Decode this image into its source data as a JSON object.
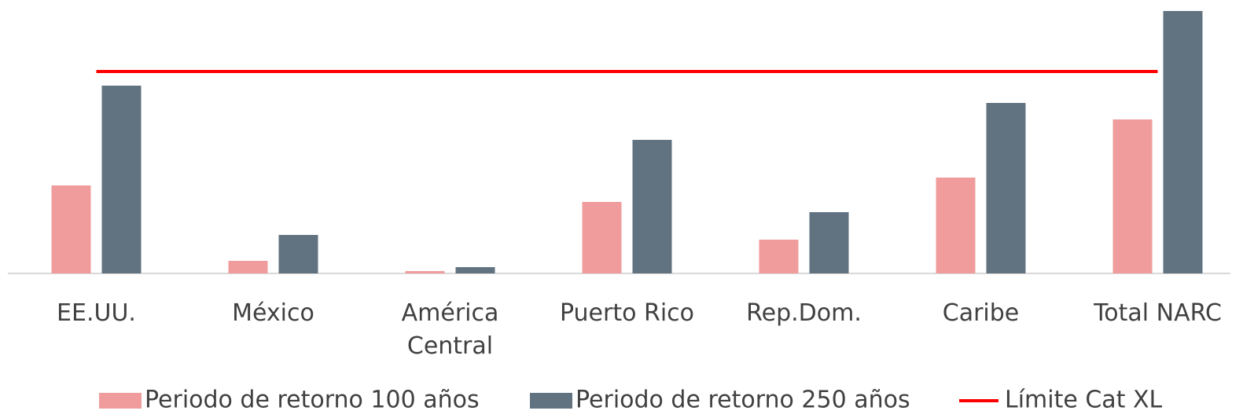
{
  "chart_data": {
    "type": "bar",
    "categories": [
      "EE.UU.",
      "México",
      "América Central",
      "Puerto Rico",
      "Rep.Dom.",
      "Caribe",
      "Total NARC"
    ],
    "series": [
      {
        "name": "Periodo de retorno 100 años",
        "color": "#f09c9c",
        "values": [
          112,
          16,
          3,
          91,
          43,
          122,
          196
        ]
      },
      {
        "name": "Periodo de retorno 250 años",
        "color": "#617381",
        "values": [
          239,
          49,
          8,
          170,
          78,
          217,
          334
        ]
      },
      {
        "name": "Límite Cat XL",
        "color": "#ff0000",
        "type": "line",
        "values": [
          257,
          257,
          257,
          257,
          257,
          257,
          257
        ]
      }
    ],
    "ylim": [
      0,
      340
    ]
  }
}
